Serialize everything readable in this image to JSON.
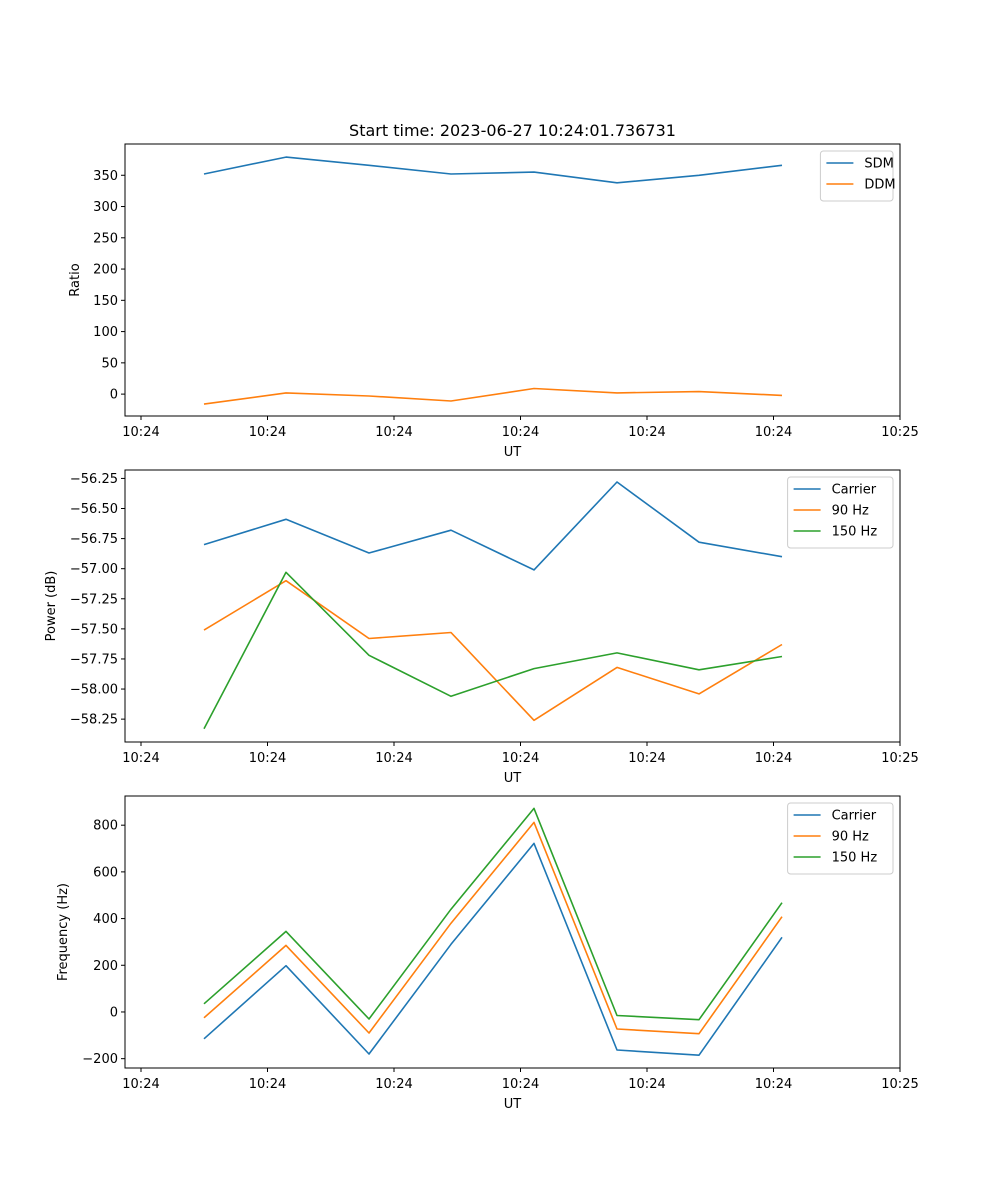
{
  "title": "Start time: 2023-06-27 10:24:01.736731",
  "chart_data": [
    {
      "type": "line",
      "xlabel": "UT",
      "ylabel": "Ratio",
      "x_ticks": [
        "10:24",
        "10:24",
        "10:24",
        "10:24",
        "10:24",
        "10:24",
        "10:25"
      ],
      "y_ticks": [
        0,
        50,
        100,
        150,
        200,
        250,
        300,
        350
      ],
      "ylim": [
        -35,
        400
      ],
      "legend": "top-right",
      "series": [
        {
          "name": "SDM",
          "color": "#1f77b4",
          "values": [
            352,
            379,
            366,
            352,
            355,
            338,
            350,
            366
          ]
        },
        {
          "name": "DDM",
          "color": "#ff7f0e",
          "values": [
            -16,
            2,
            -3,
            -11,
            9,
            2,
            4,
            -2
          ]
        }
      ]
    },
    {
      "type": "line",
      "xlabel": "UT",
      "ylabel": "Power (dB)",
      "x_ticks": [
        "10:24",
        "10:24",
        "10:24",
        "10:24",
        "10:24",
        "10:24",
        "10:25"
      ],
      "y_ticks": [
        -56.25,
        -56.5,
        -56.75,
        -57.0,
        -57.25,
        -57.5,
        -57.75,
        -58.0,
        -58.25
      ],
      "y_tick_labels": [
        "−56.25",
        "−56.50",
        "−56.75",
        "−57.00",
        "−57.25",
        "−57.50",
        "−57.75",
        "−58.00",
        "−58.25"
      ],
      "ylim": [
        -58.44,
        -56.18
      ],
      "legend": "top-right",
      "series": [
        {
          "name": "Carrier",
          "color": "#1f77b4",
          "values": [
            -56.8,
            -56.59,
            -56.87,
            -56.68,
            -57.01,
            -56.28,
            -56.78,
            -56.9
          ]
        },
        {
          "name": "90 Hz",
          "color": "#ff7f0e",
          "values": [
            -57.51,
            -57.1,
            -57.58,
            -57.53,
            -58.26,
            -57.82,
            -58.04,
            -57.63
          ]
        },
        {
          "name": "150 Hz",
          "color": "#2ca02c",
          "values": [
            -58.33,
            -57.03,
            -57.72,
            -58.06,
            -57.83,
            -57.7,
            -57.84,
            -57.73
          ]
        }
      ]
    },
    {
      "type": "line",
      "xlabel": "UT",
      "ylabel": "Frequency (Hz)",
      "x_ticks": [
        "10:24",
        "10:24",
        "10:24",
        "10:24",
        "10:24",
        "10:24",
        "10:25"
      ],
      "y_ticks": [
        -200,
        0,
        200,
        400,
        600,
        800
      ],
      "y_tick_labels": [
        "−200",
        "0",
        "200",
        "400",
        "600",
        "800"
      ],
      "ylim": [
        -240,
        925
      ],
      "legend": "top-right",
      "series": [
        {
          "name": "Carrier",
          "color": "#1f77b4",
          "values": [
            -115,
            198,
            -180,
            290,
            722,
            -163,
            -185,
            320
          ]
        },
        {
          "name": "90 Hz",
          "color": "#ff7f0e",
          "values": [
            -25,
            285,
            -90,
            380,
            812,
            -73,
            -93,
            408
          ]
        },
        {
          "name": "150 Hz",
          "color": "#2ca02c",
          "values": [
            35,
            345,
            -30,
            440,
            872,
            -15,
            -33,
            468
          ]
        }
      ]
    }
  ]
}
